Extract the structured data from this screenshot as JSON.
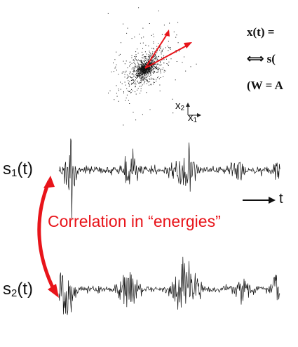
{
  "formulas": {
    "line1": "x(t) =",
    "line2": "⟺ s(",
    "line3": "(W = A"
  },
  "scatter": {
    "axis_x1": "x",
    "axis_x1_sub": "1",
    "axis_x2": "x",
    "axis_x2_sub": "2"
  },
  "signals": {
    "s1": "s",
    "s1_sub": "1",
    "s1_arg": "(t)",
    "s2": "s",
    "s2_sub": "2",
    "s2_arg": "(t)"
  },
  "time_label": "t",
  "correlation_label": "Correlation in “energies”",
  "colors": {
    "accent": "#e8141a",
    "ink": "#111111"
  }
}
